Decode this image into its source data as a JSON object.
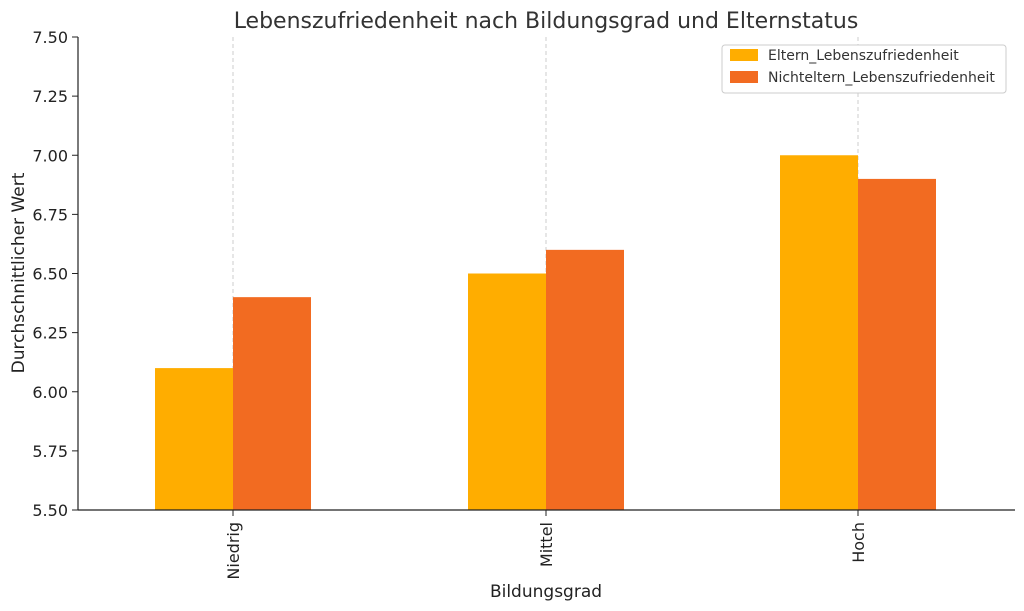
{
  "chart_data": {
    "type": "bar",
    "title": "Lebenszufriedenheit nach Bildungsgrad und Elternstatus",
    "xlabel": "Bildungsgrad",
    "ylabel": "Durchschnittlicher Wert",
    "categories": [
      "Niedrig",
      "Mittel",
      "Hoch"
    ],
    "series": [
      {
        "name": "Eltern_Lebenszufriedenheit",
        "values": [
          6.1,
          6.5,
          7.0
        ],
        "color": "#FFAD00"
      },
      {
        "name": "Nichteltern_Lebenszufriedenheit",
        "values": [
          6.4,
          6.6,
          6.9
        ],
        "color": "#F26B21"
      }
    ],
    "ylim": [
      5.5,
      7.5
    ],
    "yticks": [
      "5.50",
      "5.75",
      "6.00",
      "6.25",
      "6.50",
      "6.75",
      "7.00",
      "7.25",
      "7.50"
    ],
    "grid": "x-dashed",
    "legend_position": "top-right"
  }
}
